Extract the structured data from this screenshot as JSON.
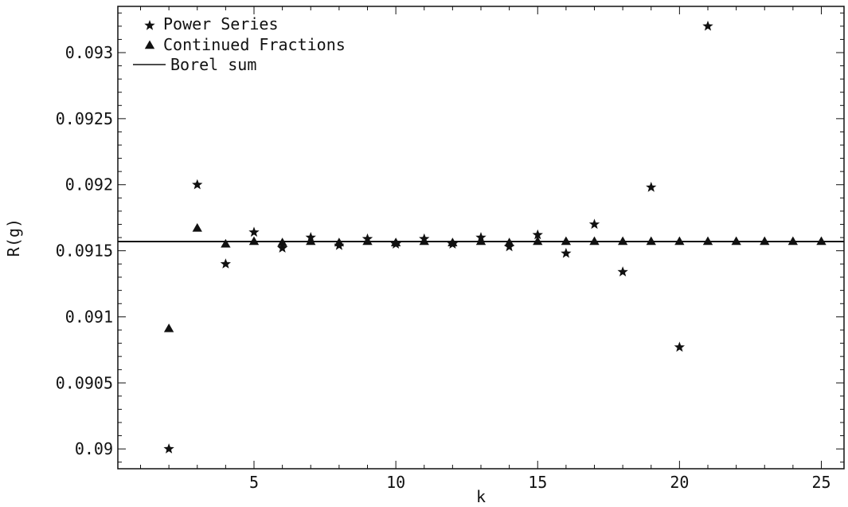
{
  "chart_data": {
    "type": "scatter",
    "xlabel": "k",
    "ylabel": "R(g)",
    "xlim": [
      0.2,
      25.8
    ],
    "ylim": [
      0.08985,
      0.09335
    ],
    "xticks": [
      5,
      10,
      15,
      20,
      25
    ],
    "yticks": [
      0.09,
      0.0905,
      0.091,
      0.0915,
      0.092,
      0.0925,
      0.093
    ],
    "ytick_labels": [
      "0.09",
      "0.0905",
      "0.091",
      "0.0915",
      "0.092",
      "0.0925",
      "0.093"
    ],
    "legend_position": "top-left",
    "colors": {
      "ink": "#111111",
      "background": "#ffffff"
    },
    "series": [
      {
        "name": "Power Series",
        "marker": "star",
        "x": [
          2,
          3,
          4,
          5,
          6,
          7,
          8,
          9,
          10,
          11,
          12,
          13,
          14,
          15,
          16,
          17,
          18,
          19,
          20,
          21
        ],
        "y": [
          0.09,
          0.092,
          0.0914,
          0.09164,
          0.09152,
          0.0916,
          0.09154,
          0.09159,
          0.09155,
          0.09159,
          0.09155,
          0.0916,
          0.09153,
          0.09162,
          0.09148,
          0.0917,
          0.09134,
          0.09198,
          0.09077,
          0.0932
        ]
      },
      {
        "name": "Continued Fractions",
        "marker": "triangle",
        "x": [
          2,
          3,
          4,
          5,
          6,
          7,
          8,
          9,
          10,
          11,
          12,
          13,
          14,
          15,
          16,
          17,
          18,
          19,
          20,
          21,
          22,
          23,
          24,
          25
        ],
        "y": [
          0.09091,
          0.09167,
          0.09155,
          0.09157,
          0.09156,
          0.09157,
          0.09156,
          0.09157,
          0.09156,
          0.09157,
          0.09156,
          0.09157,
          0.09156,
          0.09157,
          0.09157,
          0.09157,
          0.09157,
          0.09157,
          0.09157,
          0.09157,
          0.09157,
          0.09157,
          0.09157,
          0.09157
        ]
      },
      {
        "name": "Borel sum",
        "marker": "line",
        "y": 0.09157
      }
    ]
  }
}
